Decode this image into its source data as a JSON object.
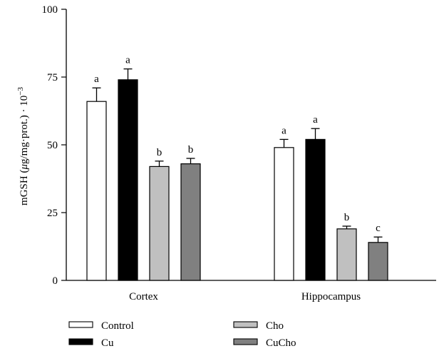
{
  "chart_data": {
    "type": "bar",
    "ylabel_main": "mGSH (",
    "ylabel_mu": "μ",
    "ylabel_rest": "g/mg·prot.) · 10",
    "ylabel_exp": "−3",
    "ylim": [
      0,
      100
    ],
    "yticks": [
      "0",
      "25",
      "50",
      "75",
      "100"
    ],
    "categories": [
      "Cortex",
      "Hippocampus"
    ],
    "series": [
      {
        "name": "Control",
        "color": "#ffffff",
        "values": [
          66,
          49
        ],
        "errors": [
          5,
          3
        ],
        "sig": [
          "a",
          "a"
        ]
      },
      {
        "name": "Cu",
        "color": "#000000",
        "values": [
          74,
          52
        ],
        "errors": [
          4,
          4
        ],
        "sig": [
          "a",
          "a"
        ]
      },
      {
        "name": "Cho",
        "color": "#c0c0c0",
        "values": [
          42,
          19
        ],
        "errors": [
          2,
          1
        ],
        "sig": [
          "b",
          "b"
        ]
      },
      {
        "name": "CuCho",
        "color": "#808080",
        "values": [
          43,
          14
        ],
        "errors": [
          2,
          2
        ],
        "sig": [
          "b",
          "c"
        ]
      }
    ],
    "legend_placement": "bottom",
    "grid": false
  }
}
